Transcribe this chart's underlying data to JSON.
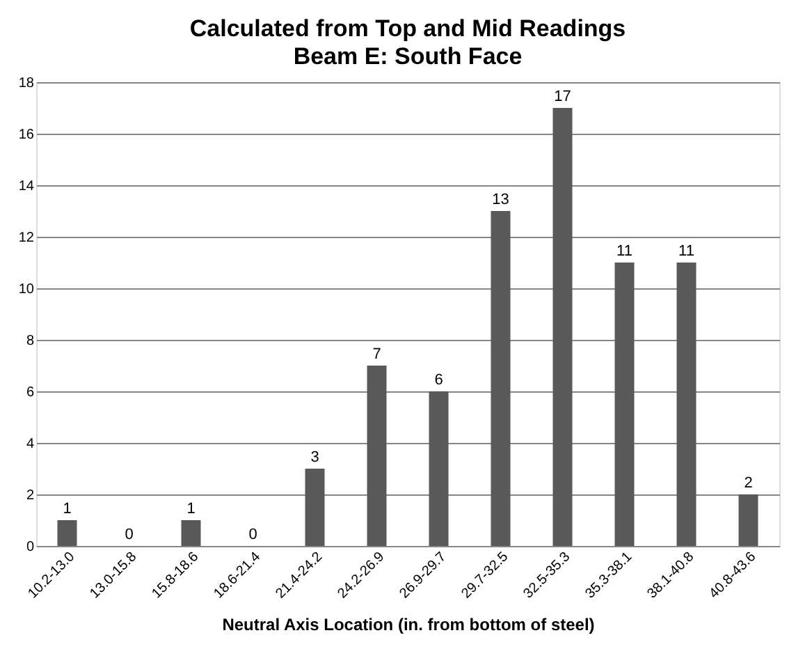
{
  "chart_data": {
    "type": "bar",
    "title": "Calculated from Top and Mid Readings",
    "subtitle": "Beam E: South Face",
    "xlabel": "Neutral Axis Location (in. from bottom of steel)",
    "categories": [
      "10.2-13.0",
      "13.0-15.8",
      "15.8-18.6",
      "18.6-21.4",
      "21.4-24.2",
      "24.2-26.9",
      "26.9-29.7",
      "29.7-32.5",
      "32.5-35.3",
      "35.3-38.1",
      "38.1-40.8",
      "40.8-43.6"
    ],
    "values": [
      1,
      0,
      1,
      0,
      3,
      7,
      6,
      13,
      17,
      11,
      11,
      2
    ],
    "color": "#595959",
    "ylim": [
      0,
      18
    ],
    "yticks": [
      0,
      2,
      4,
      6,
      8,
      10,
      12,
      14,
      16,
      18
    ],
    "grid": "y",
    "data_labels": true
  }
}
